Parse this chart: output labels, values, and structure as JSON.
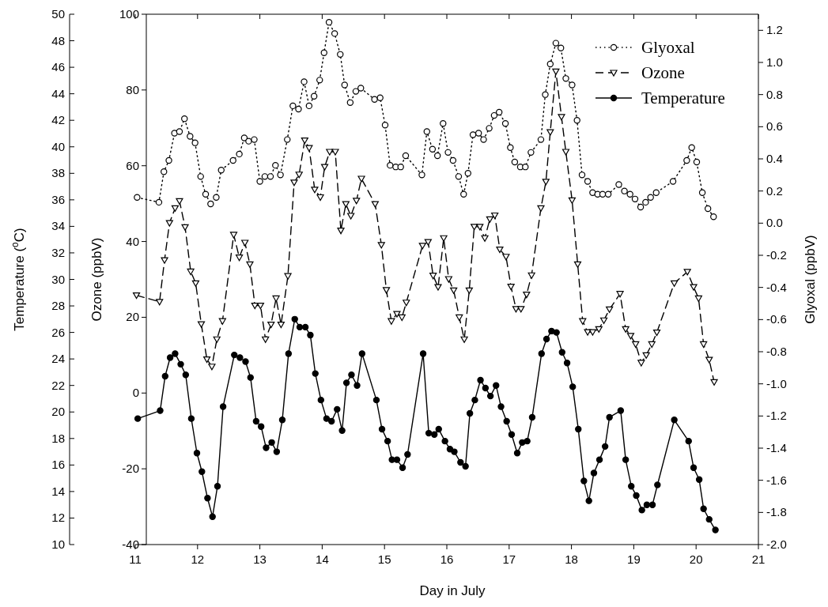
{
  "chart_data": {
    "type": "line",
    "xlabel": "Day in July",
    "ylabel": "Ozone (ppbV)",
    "y2label": "Glyoxal (ppbV)",
    "y3label": "Temperature ($^{o}$C)",
    "xlim": [
      11,
      21
    ],
    "xticks": [
      11,
      12,
      13,
      14,
      15,
      16,
      17,
      18,
      19,
      20,
      21
    ],
    "ylim": [
      -40,
      100
    ],
    "yticks": [
      -40,
      -20,
      0,
      20,
      40,
      60,
      80,
      100
    ],
    "y2lim": [
      -2.0,
      1.3
    ],
    "y2ticks": [
      {
        "value": -2,
        "label": "-2.0"
      },
      -1.8,
      -1.6,
      -1.4,
      -1.2,
      {
        "value": -1,
        "label": "-1.0"
      },
      -0.8,
      -0.6,
      -0.4,
      -0.2,
      {
        "value": 0,
        "label": "0.0"
      },
      0.2,
      0.4,
      0.6,
      0.8,
      {
        "value": 1,
        "label": "1.0"
      },
      1.2
    ],
    "y3lim": [
      10,
      50
    ],
    "y3ticks": [
      10,
      12,
      14,
      16,
      18,
      20,
      22,
      24,
      26,
      28,
      30,
      32,
      34,
      36,
      38,
      40,
      42,
      44,
      46,
      48,
      50
    ],
    "legend": "top right",
    "series": [
      {
        "name": "Glyoxal",
        "color": "#000000",
        "axis": "y2",
        "marker": "circle",
        "line_style": "dotted",
        "x": [
          11.03,
          11.38,
          11.46,
          11.54,
          11.63,
          11.71,
          11.79,
          11.88,
          11.96,
          12.05,
          12.13,
          12.21,
          12.3,
          12.38,
          12.57,
          12.67,
          12.75,
          12.82,
          12.91,
          13.0,
          13.08,
          13.17,
          13.25,
          13.33,
          13.44,
          13.53,
          13.62,
          13.71,
          13.79,
          13.87,
          13.96,
          14.03,
          14.11,
          14.2,
          14.29,
          14.36,
          14.45,
          14.54,
          14.62,
          14.84,
          14.93,
          15.01,
          15.09,
          15.18,
          15.26,
          15.34,
          15.6,
          15.68,
          15.77,
          15.85,
          15.94,
          16.02,
          16.1,
          16.19,
          16.27,
          16.34,
          16.42,
          16.51,
          16.59,
          16.68,
          16.76,
          16.84,
          16.94,
          17.02,
          17.09,
          17.18,
          17.26,
          17.35,
          17.51,
          17.58,
          17.66,
          17.75,
          17.83,
          17.91,
          18.01,
          18.09,
          18.17,
          18.26,
          18.34,
          18.42,
          18.5,
          18.59,
          18.76,
          18.85,
          18.94,
          19.02,
          19.11,
          19.19,
          19.27,
          19.36,
          19.63,
          19.85,
          19.93,
          20.01,
          20.1,
          20.19,
          20.28
        ],
        "values": [
          0.16,
          0.13,
          0.32,
          0.39,
          0.56,
          0.57,
          0.65,
          0.54,
          0.5,
          0.29,
          0.18,
          0.12,
          0.16,
          0.33,
          0.39,
          0.43,
          0.53,
          0.51,
          0.52,
          0.26,
          0.29,
          0.29,
          0.36,
          0.3,
          0.52,
          0.73,
          0.71,
          0.88,
          0.73,
          0.79,
          0.89,
          1.06,
          1.25,
          1.18,
          1.05,
          0.86,
          0.75,
          0.82,
          0.84,
          0.77,
          0.78,
          0.61,
          0.36,
          0.35,
          0.35,
          0.42,
          0.3,
          0.57,
          0.46,
          0.42,
          0.62,
          0.44,
          0.39,
          0.29,
          0.18,
          0.31,
          0.55,
          0.56,
          0.52,
          0.59,
          0.67,
          0.69,
          0.62,
          0.47,
          0.38,
          0.35,
          0.35,
          0.44,
          0.52,
          0.8,
          0.99,
          1.12,
          1.09,
          0.9,
          0.86,
          0.64,
          0.3,
          0.26,
          0.19,
          0.18,
          0.18,
          0.18,
          0.24,
          0.2,
          0.18,
          0.15,
          0.1,
          0.13,
          0.16,
          0.19,
          0.26,
          0.39,
          0.47,
          0.38,
          0.19,
          0.09,
          0.04
        ]
      },
      {
        "name": "Ozone",
        "color": "#000000",
        "axis": "y",
        "marker": "triangle",
        "line_style": "dashed",
        "x": [
          11.02,
          11.39,
          11.47,
          11.55,
          11.64,
          11.71,
          11.8,
          11.89,
          11.97,
          12.06,
          12.15,
          12.23,
          12.31,
          12.4,
          12.58,
          12.67,
          12.76,
          12.84,
          12.92,
          13.01,
          13.09,
          13.18,
          13.26,
          13.34,
          13.45,
          13.55,
          13.63,
          13.72,
          13.79,
          13.88,
          13.97,
          14.04,
          14.12,
          14.21,
          14.3,
          14.38,
          14.46,
          14.55,
          14.63,
          14.85,
          14.95,
          15.03,
          15.11,
          15.2,
          15.28,
          15.35,
          15.61,
          15.7,
          15.78,
          15.86,
          15.95,
          16.03,
          16.11,
          16.2,
          16.28,
          16.36,
          16.44,
          16.53,
          16.61,
          16.69,
          16.77,
          16.85,
          16.95,
          17.03,
          17.11,
          17.19,
          17.28,
          17.36,
          17.51,
          17.59,
          17.66,
          17.75,
          17.84,
          17.91,
          18.01,
          18.1,
          18.18,
          18.26,
          18.34,
          18.44,
          18.52,
          18.61,
          18.78,
          18.87,
          18.95,
          19.03,
          19.12,
          19.2,
          19.29,
          19.37,
          19.65,
          19.86,
          19.96,
          20.04,
          20.12,
          20.21,
          20.29
        ],
        "values": [
          25.8,
          24.1,
          35.1,
          44.9,
          48.8,
          50.7,
          43.8,
          32.1,
          29.0,
          18.2,
          8.9,
          7.0,
          14.2,
          19.0,
          41.8,
          35.8,
          39.7,
          34.0,
          23.1,
          23.1,
          14.2,
          18.1,
          25.0,
          18.1,
          30.9,
          55.6,
          57.7,
          66.7,
          64.7,
          53.7,
          51.7,
          59.7,
          63.7,
          63.7,
          42.9,
          49.9,
          46.8,
          50.8,
          56.6,
          49.9,
          39.1,
          27.2,
          19.0,
          20.9,
          20.0,
          23.9,
          38.9,
          39.9,
          31.0,
          28.0,
          40.9,
          30.1,
          27.1,
          20.0,
          14.2,
          27.1,
          43.9,
          43.9,
          40.9,
          45.9,
          46.9,
          37.9,
          36.0,
          28.1,
          22.2,
          22.2,
          26.0,
          31.1,
          48.8,
          55.8,
          68.9,
          84.9,
          72.9,
          63.7,
          50.9,
          34.0,
          19.0,
          16.1,
          16.1,
          16.9,
          19.2,
          22.1,
          26.2,
          16.9,
          15.1,
          12.9,
          8.0,
          10.0,
          12.9,
          16.0,
          29.0,
          32.0,
          28.0,
          25.0,
          12.9,
          8.8,
          2.9
        ]
      },
      {
        "name": "Temperature",
        "color": "#000000",
        "axis": "y3",
        "marker": "circle",
        "line_style": "solid",
        "x": [
          11.04,
          11.4,
          11.48,
          11.56,
          11.64,
          11.73,
          11.81,
          11.9,
          11.99,
          12.07,
          12.16,
          12.24,
          12.32,
          12.41,
          12.59,
          12.68,
          12.77,
          12.85,
          12.94,
          13.02,
          13.1,
          13.19,
          13.27,
          13.36,
          13.46,
          13.56,
          13.64,
          13.73,
          13.81,
          13.89,
          13.98,
          14.07,
          14.15,
          14.24,
          14.32,
          14.39,
          14.47,
          14.56,
          14.64,
          14.87,
          14.96,
          15.05,
          15.12,
          15.2,
          15.29,
          15.37,
          15.62,
          15.71,
          15.8,
          15.87,
          15.97,
          16.05,
          16.12,
          16.22,
          16.3,
          16.37,
          16.45,
          16.54,
          16.62,
          16.7,
          16.79,
          16.87,
          16.96,
          17.04,
          17.13,
          17.21,
          17.29,
          17.37,
          17.52,
          17.6,
          17.68,
          17.76,
          17.85,
          17.93,
          18.02,
          18.11,
          18.2,
          18.28,
          18.36,
          18.45,
          18.54,
          18.61,
          18.79,
          18.87,
          18.96,
          19.04,
          19.13,
          19.21,
          19.3,
          19.38,
          19.65,
          19.88,
          19.96,
          20.05,
          20.12,
          20.21,
          20.31
        ],
        "values": [
          19.5,
          20.1,
          22.7,
          24.1,
          24.4,
          23.6,
          22.8,
          19.5,
          16.9,
          15.5,
          13.5,
          12.1,
          14.4,
          20.4,
          24.3,
          24.1,
          23.8,
          22.6,
          19.3,
          18.9,
          17.3,
          17.7,
          17.0,
          19.4,
          24.4,
          27.0,
          26.4,
          26.4,
          25.8,
          22.9,
          20.9,
          19.5,
          19.3,
          20.2,
          18.6,
          22.2,
          22.8,
          22.0,
          24.4,
          20.9,
          18.7,
          17.8,
          16.4,
          16.4,
          15.8,
          16.8,
          24.4,
          18.4,
          18.3,
          18.7,
          17.8,
          17.2,
          17.0,
          16.2,
          15.9,
          19.9,
          20.9,
          22.4,
          21.8,
          21.2,
          22.0,
          20.4,
          19.3,
          18.3,
          16.9,
          17.7,
          17.8,
          19.6,
          24.4,
          25.5,
          26.1,
          26.0,
          24.5,
          23.7,
          21.9,
          18.7,
          14.8,
          13.3,
          15.4,
          16.4,
          17.4,
          19.6,
          20.1,
          16.4,
          14.4,
          13.7,
          12.6,
          13.0,
          13.0,
          14.5,
          19.4,
          17.8,
          15.8,
          14.9,
          12.7,
          11.9,
          11.1
        ]
      }
    ]
  }
}
